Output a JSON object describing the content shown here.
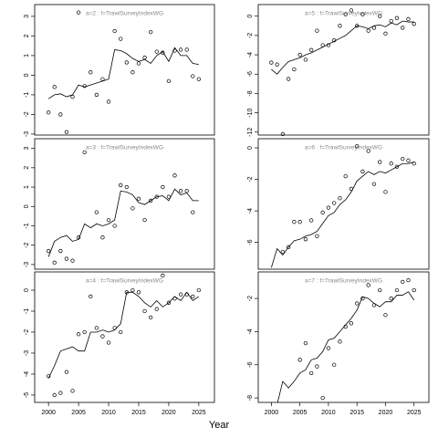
{
  "x_axis": {
    "xlabel": "Year",
    "xlim": [
      1997.7,
      2027.6
    ],
    "xticks": [
      2000,
      2005,
      2010,
      2015,
      2020,
      2025
    ]
  },
  "chart_data": [
    {
      "type": "line",
      "title": "a=2 : f=TrawlSurveyIndexWG",
      "x": [
        2000,
        2001,
        2002,
        2003,
        2004,
        2005,
        2006,
        2007,
        2008,
        2009,
        2010,
        2011,
        2012,
        2013,
        2014,
        2015,
        2016,
        2017,
        2018,
        2019,
        2020,
        2021,
        2022,
        2023,
        2024,
        2025
      ],
      "ylim": [
        -3.05,
        3.6
      ],
      "yticks": [
        -3,
        -2,
        -1,
        0,
        1,
        2,
        3
      ],
      "series": [
        {
          "mode": "points",
          "color": "#000000",
          "values": [
            -1.9,
            -0.6,
            -2.0,
            -2.9,
            -1.1,
            3.2,
            -0.55,
            0.15,
            -1.0,
            -0.2,
            -1.35,
            2.25,
            1.85,
            0.65,
            0.15,
            0.6,
            0.9,
            2.2,
            1.2,
            1.15,
            -0.3,
            1.25,
            1.3,
            1.3,
            -0.05,
            -0.2
          ]
        },
        {
          "mode": "line",
          "color": "#000000",
          "values": [
            -1.2,
            -1.0,
            -0.95,
            -1.1,
            -1.0,
            -0.5,
            -0.6,
            -0.5,
            -0.4,
            -0.3,
            -0.2,
            1.3,
            1.25,
            1.1,
            0.85,
            0.7,
            0.8,
            0.6,
            1.0,
            1.2,
            0.7,
            1.4,
            1.0,
            1.0,
            0.6,
            0.55
          ]
        }
      ]
    },
    {
      "type": "line",
      "title": "a=5 : f=TrawlSurveyIndexWG",
      "x": [
        2000,
        2001,
        2002,
        2003,
        2004,
        2005,
        2006,
        2007,
        2008,
        2009,
        2010,
        2011,
        2012,
        2013,
        2014,
        2015,
        2016,
        2017,
        2018,
        2019,
        2020,
        2021,
        2022,
        2023,
        2024,
        2025
      ],
      "ylim": [
        -12.3,
        1.2
      ],
      "yticks": [
        -12,
        -10,
        -8,
        -6,
        -4,
        -2,
        0
      ],
      "series": [
        {
          "mode": "points",
          "color": "#000000",
          "values": [
            -4.8,
            -5.0,
            -12.2,
            -6.5,
            -5.5,
            -4.0,
            -4.5,
            -3.5,
            -1.5,
            -3.0,
            -3.0,
            -2.5,
            -1.0,
            0.2,
            0.6,
            -1.0,
            0.2,
            -1.5,
            -1.2,
            0.0,
            -1.8,
            -0.5,
            -0.2,
            -1.2,
            -0.3,
            -0.8
          ]
        },
        {
          "mode": "line",
          "color": "#000000",
          "values": [
            -5.5,
            -6.0,
            -5.3,
            -4.7,
            -4.5,
            -4.3,
            -4.0,
            -3.8,
            -3.5,
            -3.2,
            -2.9,
            -2.6,
            -2.3,
            -2.0,
            -1.5,
            -1.0,
            -1.1,
            -1.3,
            -1.0,
            -0.9,
            -1.1,
            -0.7,
            -0.9,
            -0.5,
            -0.6,
            -0.6
          ]
        }
      ]
    },
    {
      "type": "line",
      "title": "a=3 : f=TrawlSurveyIndexWG",
      "x": [
        2000,
        2001,
        2002,
        2003,
        2004,
        2005,
        2006,
        2007,
        2008,
        2009,
        2010,
        2011,
        2012,
        2013,
        2014,
        2015,
        2016,
        2017,
        2018,
        2019,
        2020,
        2021,
        2022,
        2023,
        2024,
        2025
      ],
      "ylim": [
        -3.24,
        3.5
      ],
      "yticks": [
        -3,
        -2,
        -1,
        0,
        1,
        2,
        3
      ],
      "series": [
        {
          "mode": "points",
          "color": "#000000",
          "values": [
            -2.3,
            -2.9,
            -2.3,
            -2.7,
            -2.8,
            -1.6,
            2.8,
            null,
            -0.3,
            -1.6,
            -0.7,
            -1.0,
            1.1,
            1.0,
            -0.1,
            0.4,
            -0.7,
            0.3,
            0.5,
            1.0,
            0.5,
            1.6,
            0.8,
            0.8,
            -0.3,
            null
          ]
        },
        {
          "mode": "line",
          "color": "#000000",
          "values": [
            -2.6,
            -1.8,
            -1.6,
            -1.5,
            -1.8,
            -1.7,
            -0.9,
            -1.1,
            -0.9,
            -1.0,
            -0.9,
            -0.7,
            0.8,
            0.75,
            0.6,
            0.2,
            0.1,
            0.3,
            0.5,
            0.55,
            0.3,
            0.9,
            0.6,
            0.7,
            0.3,
            0.3
          ]
        }
      ]
    },
    {
      "type": "line",
      "title": "a=6 : f=TrawlSurveyIndexWG",
      "x": [
        2000,
        2001,
        2002,
        2003,
        2004,
        2005,
        2006,
        2007,
        2008,
        2009,
        2010,
        2011,
        2012,
        2013,
        2014,
        2015,
        2016,
        2017,
        2018,
        2019,
        2020,
        2021,
        2022,
        2023,
        2024,
        2025
      ],
      "ylim": [
        -7.7,
        0.58
      ],
      "yticks": [
        -6,
        -4,
        -2,
        0
      ],
      "series": [
        {
          "mode": "points",
          "color": "#000000",
          "values": [
            null,
            null,
            -6.6,
            -6.3,
            -4.7,
            -4.7,
            -5.8,
            -4.6,
            -5.6,
            -4.1,
            -3.8,
            -3.5,
            -3.2,
            -1.8,
            -2.6,
            0.1,
            -1.5,
            -0.2,
            -2.3,
            -0.9,
            -2.8,
            -1.0,
            -1.2,
            -0.7,
            -0.8,
            -1.0
          ]
        },
        {
          "mode": "line",
          "color": "#000000",
          "values": [
            -7.6,
            -6.4,
            -6.8,
            -6.3,
            -5.9,
            -5.8,
            -5.6,
            -5.5,
            -5.3,
            -4.8,
            -4.3,
            -4.1,
            -3.6,
            -3.3,
            -2.8,
            -2.1,
            -1.8,
            -1.5,
            -1.7,
            -1.5,
            -1.6,
            -1.4,
            -1.2,
            -1.0,
            -1.0,
            -0.9
          ]
        }
      ]
    },
    {
      "type": "line",
      "title": "a=4 : f=TrawlSurveyIndexWG",
      "x": [
        2000,
        2001,
        2002,
        2003,
        2004,
        2005,
        2006,
        2007,
        2008,
        2009,
        2010,
        2011,
        2012,
        2013,
        2014,
        2015,
        2016,
        2017,
        2018,
        2019,
        2020,
        2021,
        2022,
        2023,
        2024,
        2025
      ],
      "ylim": [
        -5.35,
        0.87
      ],
      "yticks": [
        -5,
        -4,
        -3,
        -2,
        -1,
        0
      ],
      "series": [
        {
          "mode": "points",
          "color": "#000000",
          "values": [
            -4.1,
            -5.0,
            -4.9,
            -3.9,
            -4.8,
            -2.1,
            -2.0,
            -0.3,
            -1.8,
            -2.2,
            -2.5,
            -1.8,
            -2.0,
            -0.1,
            0.0,
            -0.1,
            -1.0,
            -1.3,
            -0.9,
            0.7,
            -0.6,
            -0.4,
            -0.2,
            -0.2,
            -0.3,
            0.0
          ]
        },
        {
          "mode": "line",
          "color": "#000000",
          "values": [
            -4.2,
            -3.6,
            -2.9,
            -2.8,
            -2.7,
            -2.9,
            -2.9,
            -2.0,
            -2.0,
            -1.9,
            -2.0,
            -1.9,
            -1.6,
            -0.1,
            -0.1,
            -0.3,
            -0.6,
            -0.8,
            -0.5,
            -0.8,
            -0.6,
            -0.3,
            -0.5,
            -0.1,
            -0.5,
            -0.3
          ]
        }
      ]
    },
    {
      "type": "line",
      "title": "a=7 : f=TrawlSurveyIndexWG",
      "x": [
        2000,
        2001,
        2002,
        2003,
        2004,
        2005,
        2006,
        2007,
        2008,
        2009,
        2010,
        2011,
        2012,
        2013,
        2014,
        2015,
        2016,
        2017,
        2018,
        2019,
        2020,
        2021,
        2022,
        2023,
        2024,
        2025
      ],
      "ylim": [
        -8.27,
        -0.4
      ],
      "yticks": [
        -8,
        -6,
        -4,
        -2
      ],
      "series": [
        {
          "mode": "points",
          "color": "#000000",
          "values": [
            null,
            null,
            null,
            null,
            null,
            -5.7,
            -4.7,
            -6.5,
            -6.1,
            -8.0,
            -5.0,
            -6.0,
            -4.6,
            -3.7,
            -3.5,
            -2.3,
            -2.0,
            -1.2,
            -2.4,
            -1.5,
            -3.0,
            -2.0,
            -1.5,
            -1.0,
            -0.9,
            -1.5
          ]
        },
        {
          "mode": "line",
          "color": "#000000",
          "values": [
            -8.6,
            -8.4,
            -7.0,
            -7.4,
            -7.0,
            -6.5,
            -6.3,
            -5.7,
            -5.6,
            -5.2,
            -4.5,
            -4.4,
            -4.0,
            -3.6,
            -3.2,
            -2.7,
            -1.9,
            -2.0,
            -2.3,
            -2.5,
            -2.2,
            -2.2,
            -1.8,
            -1.8,
            -1.6,
            -2.1
          ]
        }
      ]
    }
  ]
}
